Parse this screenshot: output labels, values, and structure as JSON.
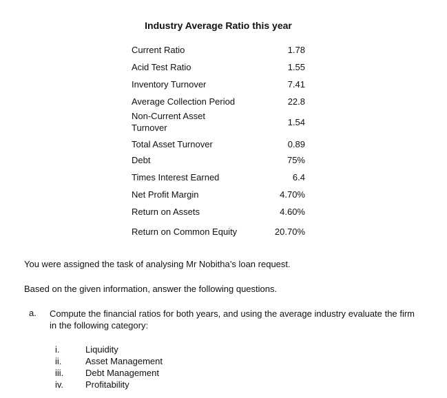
{
  "header": {
    "title": "Industry Average Ratio this year"
  },
  "table": {
    "rows": [
      [
        "Current Ratio",
        "1.78"
      ],
      [
        "Acid Test Ratio",
        "1.55"
      ],
      [
        "Inventory Turnover",
        "7.41"
      ],
      [
        "Average Collection Period",
        "22.8"
      ],
      [
        "Non-Current Asset Turnover",
        "1.54"
      ],
      [
        "Total Asset Turnover",
        "0.89"
      ],
      [
        "Debt",
        "75%"
      ],
      [
        "Times Interest Earned",
        "6.4"
      ],
      [
        "Net Profit Margin",
        "4.70%"
      ],
      [
        "Return on Assets",
        "4.60%"
      ],
      [
        "Return on Common Equity",
        "20.70%"
      ]
    ]
  },
  "paragraphs": [
    "You were assigned the task of analysing Mr Nobitha’s loan request.",
    "Based on the given information, answer the following questions."
  ],
  "question": {
    "marker": "a.",
    "text": "Compute the financial ratios for both years, and using the average industry evaluate the firm in the following category:",
    "items": [
      {
        "marker": "i.",
        "text": "Liquidity"
      },
      {
        "marker": "ii.",
        "text": "Asset Management"
      },
      {
        "marker": "iii.",
        "text": "Debt Management"
      },
      {
        "marker": "iv.",
        "text": "Profitability"
      }
    ]
  }
}
